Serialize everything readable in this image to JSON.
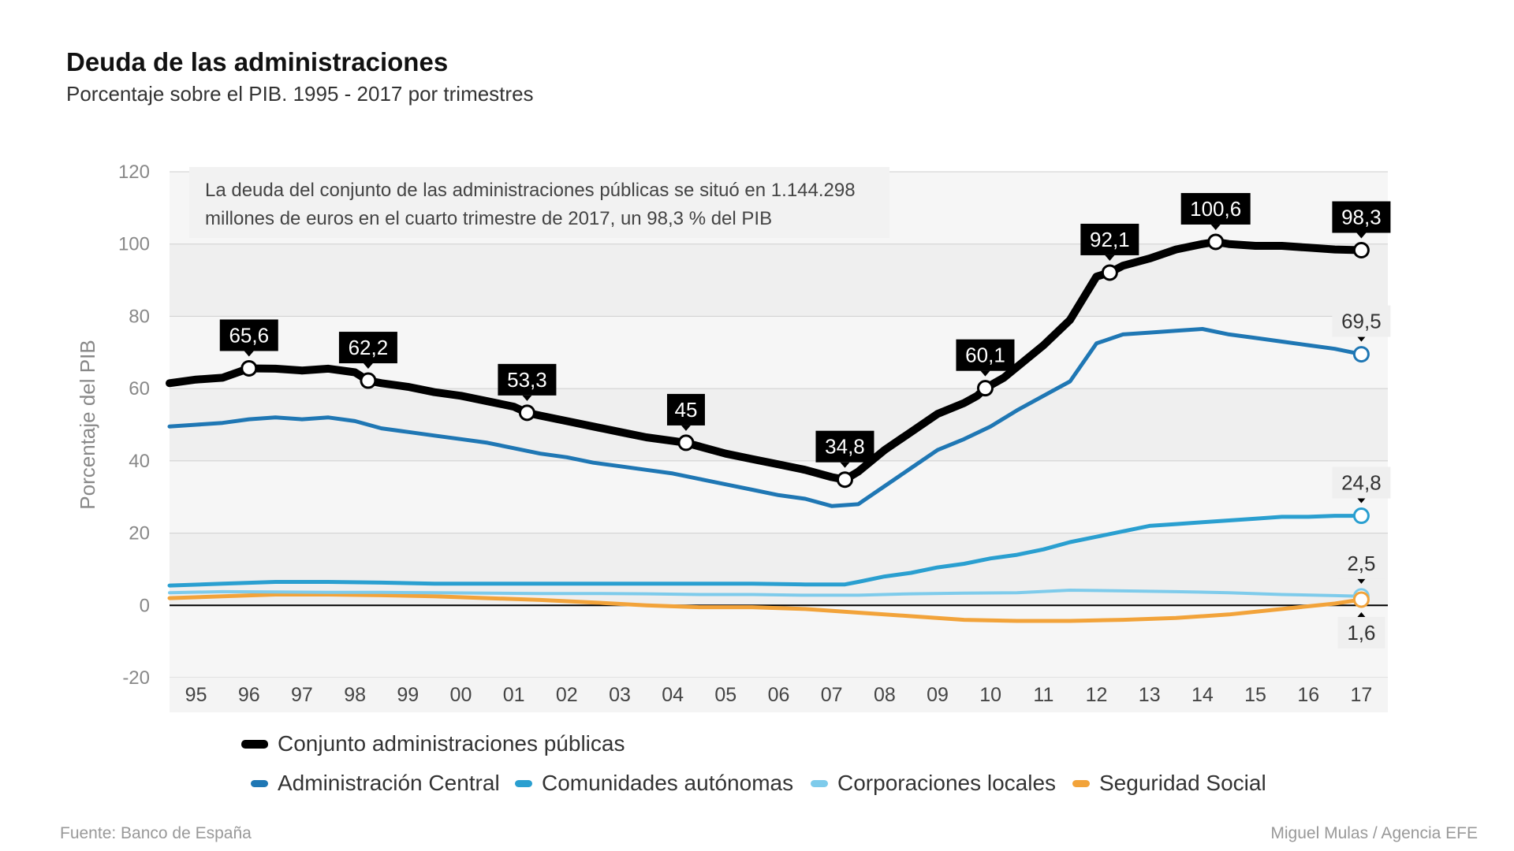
{
  "title": "Deuda de las administraciones",
  "subtitle": "Porcentaje sobre el PIB. 1995 - 2017 por trimestres",
  "note": {
    "line1": "La deuda del conjunto de las administraciones públicas se situó en 1.144.298",
    "line2": "millones de euros en el cuarto trimestre de 2017, un 98,3 % del PIB"
  },
  "source": "Fuente: Banco de España",
  "credit": "Miguel Mulas / Agencia EFE",
  "colors": {
    "total": "#000000",
    "central": "#1f77b4",
    "autonomas": "#2a9fd0",
    "locales": "#7ecbeb",
    "seguridad": "#f2a33a",
    "grid": "#cfcfcf",
    "band": "#efefef"
  },
  "chart_data": {
    "type": "line",
    "ylabel": "Porcentaje del PIB",
    "ylim": [
      -20,
      120
    ],
    "yticks": [
      -20,
      0,
      20,
      40,
      60,
      80,
      100,
      120
    ],
    "xlim": [
      1995.0,
      2018.0
    ],
    "x_tick_labels": [
      "95",
      "96",
      "97",
      "98",
      "99",
      "00",
      "01",
      "02",
      "03",
      "04",
      "05",
      "06",
      "07",
      "08",
      "09",
      "10",
      "11",
      "12",
      "13",
      "14",
      "15",
      "16",
      "17"
    ],
    "grid": true,
    "legend_position": "bottom",
    "series": [
      {
        "name": "Conjunto administraciones públicas",
        "key": "total",
        "points": [
          [
            1995.0,
            61.5
          ],
          [
            1995.5,
            62.5
          ],
          [
            1996.0,
            63.0
          ],
          [
            1996.5,
            65.6
          ],
          [
            1997.0,
            65.5
          ],
          [
            1997.5,
            65.0
          ],
          [
            1998.0,
            65.5
          ],
          [
            1998.5,
            64.5
          ],
          [
            1998.75,
            62.2
          ],
          [
            1999.0,
            61.5
          ],
          [
            1999.5,
            60.5
          ],
          [
            2000.0,
            59.0
          ],
          [
            2000.5,
            58.0
          ],
          [
            2001.0,
            56.5
          ],
          [
            2001.5,
            55.0
          ],
          [
            2001.75,
            53.3
          ],
          [
            2002.0,
            52.5
          ],
          [
            2002.5,
            51.0
          ],
          [
            2003.0,
            49.5
          ],
          [
            2003.5,
            48.0
          ],
          [
            2004.0,
            46.5
          ],
          [
            2004.5,
            45.5
          ],
          [
            2004.75,
            45.0
          ],
          [
            2005.0,
            44.0
          ],
          [
            2005.5,
            42.0
          ],
          [
            2006.0,
            40.5
          ],
          [
            2006.5,
            39.0
          ],
          [
            2007.0,
            37.5
          ],
          [
            2007.5,
            35.5
          ],
          [
            2007.75,
            34.8
          ],
          [
            2008.0,
            37.0
          ],
          [
            2008.5,
            43.0
          ],
          [
            2009.0,
            48.0
          ],
          [
            2009.5,
            53.0
          ],
          [
            2010.0,
            56.0
          ],
          [
            2010.25,
            58.0
          ],
          [
            2010.4,
            60.1
          ],
          [
            2010.75,
            63.0
          ],
          [
            2011.0,
            66.0
          ],
          [
            2011.5,
            72.0
          ],
          [
            2012.0,
            79.0
          ],
          [
            2012.5,
            91.0
          ],
          [
            2012.75,
            92.1
          ],
          [
            2013.0,
            94.0
          ],
          [
            2013.5,
            96.0
          ],
          [
            2014.0,
            98.5
          ],
          [
            2014.5,
            100.0
          ],
          [
            2014.75,
            100.6
          ],
          [
            2015.0,
            100.0
          ],
          [
            2015.5,
            99.5
          ],
          [
            2016.0,
            99.5
          ],
          [
            2016.5,
            99.0
          ],
          [
            2017.0,
            98.5
          ],
          [
            2017.5,
            98.3
          ]
        ]
      },
      {
        "name": "Administración Central",
        "key": "central",
        "points": [
          [
            1995.0,
            49.5
          ],
          [
            1995.5,
            50.0
          ],
          [
            1996.0,
            50.5
          ],
          [
            1996.5,
            51.5
          ],
          [
            1997.0,
            52.0
          ],
          [
            1997.5,
            51.5
          ],
          [
            1998.0,
            52.0
          ],
          [
            1998.5,
            51.0
          ],
          [
            1999.0,
            49.0
          ],
          [
            1999.5,
            48.0
          ],
          [
            2000.0,
            47.0
          ],
          [
            2000.5,
            46.0
          ],
          [
            2001.0,
            45.0
          ],
          [
            2001.5,
            43.5
          ],
          [
            2002.0,
            42.0
          ],
          [
            2002.5,
            41.0
          ],
          [
            2003.0,
            39.5
          ],
          [
            2003.5,
            38.5
          ],
          [
            2004.0,
            37.5
          ],
          [
            2004.5,
            36.5
          ],
          [
            2005.0,
            35.0
          ],
          [
            2005.5,
            33.5
          ],
          [
            2006.0,
            32.0
          ],
          [
            2006.5,
            30.5
          ],
          [
            2007.0,
            29.5
          ],
          [
            2007.5,
            27.5
          ],
          [
            2008.0,
            28.0
          ],
          [
            2008.5,
            33.0
          ],
          [
            2009.0,
            38.0
          ],
          [
            2009.5,
            43.0
          ],
          [
            2010.0,
            46.0
          ],
          [
            2010.5,
            49.5
          ],
          [
            2011.0,
            54.0
          ],
          [
            2011.5,
            58.0
          ],
          [
            2012.0,
            62.0
          ],
          [
            2012.5,
            72.5
          ],
          [
            2013.0,
            75.0
          ],
          [
            2013.5,
            75.5
          ],
          [
            2014.0,
            76.0
          ],
          [
            2014.5,
            76.5
          ],
          [
            2015.0,
            75.0
          ],
          [
            2015.5,
            74.0
          ],
          [
            2016.0,
            73.0
          ],
          [
            2016.5,
            72.0
          ],
          [
            2017.0,
            71.0
          ],
          [
            2017.5,
            69.5
          ]
        ]
      },
      {
        "name": "Comunidades autónomas",
        "key": "autonomas",
        "points": [
          [
            1995.0,
            5.5
          ],
          [
            1996.0,
            6.0
          ],
          [
            1997.0,
            6.5
          ],
          [
            1998.0,
            6.5
          ],
          [
            1999.0,
            6.3
          ],
          [
            2000.0,
            6.0
          ],
          [
            2001.0,
            6.0
          ],
          [
            2002.0,
            6.0
          ],
          [
            2003.0,
            6.0
          ],
          [
            2004.0,
            6.0
          ],
          [
            2005.0,
            6.0
          ],
          [
            2006.0,
            6.0
          ],
          [
            2007.0,
            5.8
          ],
          [
            2007.75,
            5.8
          ],
          [
            2008.0,
            6.5
          ],
          [
            2008.5,
            8.0
          ],
          [
            2009.0,
            9.0
          ],
          [
            2009.5,
            10.5
          ],
          [
            2010.0,
            11.5
          ],
          [
            2010.5,
            13.0
          ],
          [
            2011.0,
            14.0
          ],
          [
            2011.5,
            15.5
          ],
          [
            2012.0,
            17.5
          ],
          [
            2012.5,
            19.0
          ],
          [
            2013.0,
            20.5
          ],
          [
            2013.5,
            22.0
          ],
          [
            2014.0,
            22.5
          ],
          [
            2014.5,
            23.0
          ],
          [
            2015.0,
            23.5
          ],
          [
            2015.5,
            24.0
          ],
          [
            2016.0,
            24.5
          ],
          [
            2016.5,
            24.5
          ],
          [
            2017.0,
            24.8
          ],
          [
            2017.5,
            24.8
          ]
        ]
      },
      {
        "name": "Corporaciones locales",
        "key": "locales",
        "points": [
          [
            1995.0,
            3.5
          ],
          [
            1996.0,
            3.8
          ],
          [
            1997.0,
            3.7
          ],
          [
            1998.0,
            3.6
          ],
          [
            1999.0,
            3.6
          ],
          [
            2000.0,
            3.5
          ],
          [
            2001.0,
            3.4
          ],
          [
            2002.0,
            3.3
          ],
          [
            2003.0,
            3.3
          ],
          [
            2004.0,
            3.2
          ],
          [
            2005.0,
            3.0
          ],
          [
            2006.0,
            3.0
          ],
          [
            2007.0,
            2.8
          ],
          [
            2008.0,
            2.8
          ],
          [
            2009.0,
            3.2
          ],
          [
            2010.0,
            3.4
          ],
          [
            2011.0,
            3.5
          ],
          [
            2012.0,
            4.2
          ],
          [
            2013.0,
            4.0
          ],
          [
            2014.0,
            3.8
          ],
          [
            2015.0,
            3.5
          ],
          [
            2016.0,
            3.0
          ],
          [
            2017.0,
            2.7
          ],
          [
            2017.5,
            2.5
          ]
        ]
      },
      {
        "name": "Seguridad Social",
        "key": "seguridad",
        "points": [
          [
            1995.0,
            2.0
          ],
          [
            1996.0,
            2.5
          ],
          [
            1997.0,
            3.0
          ],
          [
            1998.0,
            3.0
          ],
          [
            1999.0,
            2.8
          ],
          [
            2000.0,
            2.5
          ],
          [
            2001.0,
            2.0
          ],
          [
            2002.0,
            1.5
          ],
          [
            2003.0,
            0.8
          ],
          [
            2004.0,
            0.0
          ],
          [
            2005.0,
            -0.5
          ],
          [
            2006.0,
            -0.5
          ],
          [
            2007.0,
            -1.0
          ],
          [
            2008.0,
            -2.0
          ],
          [
            2009.0,
            -3.0
          ],
          [
            2010.0,
            -4.0
          ],
          [
            2011.0,
            -4.3
          ],
          [
            2012.0,
            -4.3
          ],
          [
            2013.0,
            -4.0
          ],
          [
            2014.0,
            -3.5
          ],
          [
            2015.0,
            -2.5
          ],
          [
            2016.0,
            -1.0
          ],
          [
            2017.0,
            0.5
          ],
          [
            2017.5,
            1.6
          ]
        ]
      }
    ],
    "annotations": [
      {
        "x": 1996.5,
        "y": 65.6,
        "label": "65,6",
        "series": "total",
        "style": "dark"
      },
      {
        "x": 1998.75,
        "y": 62.2,
        "label": "62,2",
        "series": "total",
        "style": "dark"
      },
      {
        "x": 2001.75,
        "y": 53.3,
        "label": "53,3",
        "series": "total",
        "style": "dark"
      },
      {
        "x": 2004.75,
        "y": 45.0,
        "label": "45",
        "series": "total",
        "style": "dark"
      },
      {
        "x": 2007.75,
        "y": 34.8,
        "label": "34,8",
        "series": "total",
        "style": "dark"
      },
      {
        "x": 2010.4,
        "y": 60.1,
        "label": "60,1",
        "series": "total",
        "style": "dark"
      },
      {
        "x": 2012.75,
        "y": 92.1,
        "label": "92,1",
        "series": "total",
        "style": "dark"
      },
      {
        "x": 2014.75,
        "y": 100.6,
        "label": "100,6",
        "series": "total",
        "style": "dark"
      },
      {
        "x": 2017.5,
        "y": 98.3,
        "label": "98,3",
        "series": "total",
        "style": "dark"
      },
      {
        "x": 2017.5,
        "y": 69.5,
        "label": "69,5",
        "series": "central",
        "style": "light"
      },
      {
        "x": 2017.5,
        "y": 24.8,
        "label": "24,8",
        "series": "autonomas",
        "style": "light"
      },
      {
        "x": 2017.5,
        "y": 2.5,
        "label": "2,5",
        "series": "locales",
        "style": "light"
      },
      {
        "x": 2017.5,
        "y": 1.6,
        "label": "1,6",
        "series": "seguridad",
        "style": "light-below"
      }
    ]
  }
}
